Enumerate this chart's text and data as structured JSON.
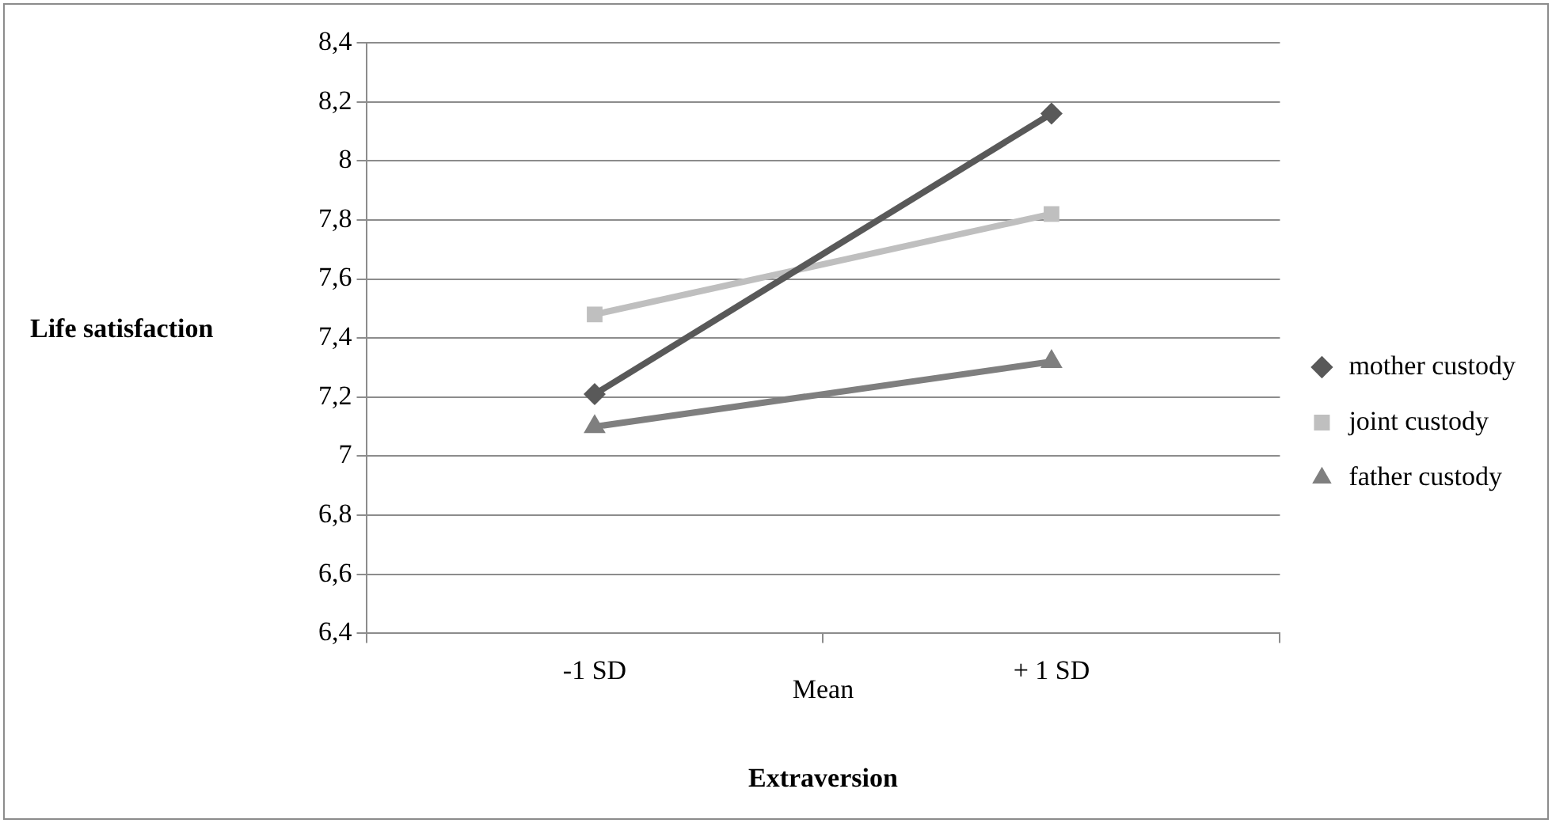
{
  "chart_data": {
    "type": "line",
    "xlabel": "Extraversion",
    "ylabel": "Life satisfaction",
    "categories": [
      "-1 SD",
      "+ 1 SD"
    ],
    "series": [
      {
        "name": "mother custody",
        "color": "#595959",
        "marker": "diamond",
        "values": [
          7.21,
          8.16
        ]
      },
      {
        "name": "joint custody",
        "color": "#bfbfbf",
        "marker": "square",
        "values": [
          7.48,
          7.82
        ]
      },
      {
        "name": "father custody",
        "color": "#7f7f7f",
        "marker": "triangle",
        "values": [
          7.1,
          7.32
        ]
      }
    ],
    "ylim": [
      6.4,
      8.4
    ],
    "yticks": [
      {
        "value": 6.4,
        "label": "6,4"
      },
      {
        "value": 6.6,
        "label": "6,6"
      },
      {
        "value": 6.8,
        "label": "6,8"
      },
      {
        "value": 7,
        "label": "7"
      },
      {
        "value": 7.2,
        "label": "7,2"
      },
      {
        "value": 7.4,
        "label": "7,4"
      },
      {
        "value": 7.6,
        "label": "7,6"
      },
      {
        "value": 7.8,
        "label": "7,8"
      },
      {
        "value": 8,
        "label": "8"
      },
      {
        "value": 8.2,
        "label": "8,2"
      },
      {
        "value": 8.4,
        "label": "8,4"
      }
    ],
    "annotations": [
      "Mean"
    ],
    "grid": "y",
    "legend": "right",
    "line_style": "solid"
  }
}
